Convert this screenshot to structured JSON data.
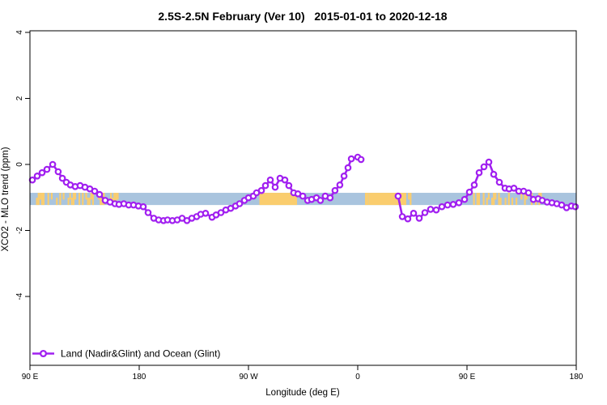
{
  "title": "2.5S-2.5N February (Ver 10)   2015-01-01 to 2020-12-18",
  "legend": {
    "label": "Land (Nadir&Glint) and Ocean (Glint)"
  },
  "axes": {
    "x": {
      "label": "Longitude (deg E)",
      "domain": [
        90,
        540
      ],
      "ticks": [
        {
          "value": 90,
          "label": "90 E"
        },
        {
          "value": 180,
          "label": "180"
        },
        {
          "value": 270,
          "label": "90 W"
        },
        {
          "value": 360,
          "label": "0"
        },
        {
          "value": 450,
          "label": "90 E"
        },
        {
          "value": 540,
          "label": "180"
        }
      ]
    },
    "y": {
      "label": "XCO2 - MLO trend (ppm)",
      "ticks": [
        {
          "value": 4,
          "label": "4"
        },
        {
          "value": 2,
          "label": "2"
        },
        {
          "value": 0,
          "label": "0"
        },
        {
          "value": -2,
          "label": "-2"
        },
        {
          "value": -4,
          "label": "-4"
        }
      ]
    }
  },
  "colors": {
    "series": "#A120F0",
    "ocean_band": "#A9C4DE",
    "land_band": "#FACD6E",
    "axis": "#000000"
  },
  "chart_data": {
    "type": "line",
    "title": "2.5S-2.5N February (Ver 10)   2015-01-01 to 2020-12-18",
    "xlabel": "Longitude (deg E)",
    "ylabel": "XCO2 - MLO trend (ppm)",
    "x_domain": [
      90,
      540
    ],
    "y_tick_range": [
      -4,
      4
    ],
    "y_plot_range": [
      -6.1,
      4.05
    ],
    "grid": false,
    "legend_position": "bottom-left",
    "marker": "open-circle",
    "series": [
      {
        "name": "Land (Nadir&Glint) and Ocean (Glint)",
        "color": "#A120F0",
        "segments": [
          [
            [
              92,
              -0.47
            ],
            [
              96,
              -0.35
            ],
            [
              100,
              -0.25
            ],
            [
              104,
              -0.15
            ],
            [
              108.7,
              0.0
            ],
            [
              113.3,
              -0.22
            ],
            [
              116.7,
              -0.42
            ],
            [
              120,
              -0.54
            ],
            [
              123.3,
              -0.62
            ],
            [
              127.3,
              -0.67
            ],
            [
              131.3,
              -0.64
            ],
            [
              135.3,
              -0.69
            ],
            [
              139.3,
              -0.74
            ],
            [
              143.3,
              -0.81
            ],
            [
              147.3,
              -0.91
            ],
            [
              152,
              -1.09
            ],
            [
              156,
              -1.14
            ],
            [
              160,
              -1.19
            ],
            [
              163.3,
              -1.21
            ],
            [
              167.3,
              -1.19
            ],
            [
              171.3,
              -1.23
            ],
            [
              175.3,
              -1.23
            ],
            [
              179.3,
              -1.26
            ],
            [
              183.3,
              -1.28
            ],
            [
              187.3,
              -1.46
            ],
            [
              192,
              -1.63
            ],
            [
              196,
              -1.68
            ],
            [
              200,
              -1.7
            ],
            [
              203.3,
              -1.68
            ],
            [
              207.3,
              -1.7
            ],
            [
              211.3,
              -1.68
            ],
            [
              215.3,
              -1.63
            ],
            [
              219.3,
              -1.7
            ],
            [
              223.3,
              -1.63
            ],
            [
              227.3,
              -1.58
            ],
            [
              230.7,
              -1.51
            ],
            [
              234.7,
              -1.48
            ],
            [
              240,
              -1.6
            ],
            [
              243.3,
              -1.53
            ],
            [
              247.3,
              -1.46
            ],
            [
              251.3,
              -1.38
            ],
            [
              255.3,
              -1.33
            ],
            [
              259.3,
              -1.26
            ],
            [
              262.7,
              -1.19
            ],
            [
              266.7,
              -1.09
            ],
            [
              270,
              -1.01
            ],
            [
              274,
              -0.96
            ],
            [
              276.7,
              -0.86
            ],
            [
              280.7,
              -0.79
            ],
            [
              284,
              -0.64
            ],
            [
              288,
              -0.47
            ],
            [
              292,
              -0.69
            ],
            [
              296,
              -0.42
            ],
            [
              300,
              -0.47
            ],
            [
              303.3,
              -0.64
            ],
            [
              307.3,
              -0.86
            ],
            [
              310.7,
              -0.89
            ],
            [
              314.7,
              -0.96
            ],
            [
              318.7,
              -1.09
            ],
            [
              322,
              -1.06
            ],
            [
              326,
              -1.01
            ],
            [
              329.3,
              -1.09
            ],
            [
              333.3,
              -0.96
            ],
            [
              337.3,
              -1.01
            ],
            [
              341.3,
              -0.79
            ],
            [
              345.3,
              -0.62
            ],
            [
              348.7,
              -0.35
            ],
            [
              352,
              -0.1
            ],
            [
              354.7,
              0.17
            ],
            [
              360,
              0.22
            ],
            [
              362.7,
              0.15
            ]
          ],
          [
            [
              393.3,
              -0.96
            ],
            [
              396.7,
              -1.58
            ],
            [
              401.3,
              -1.65
            ],
            [
              406,
              -1.48
            ],
            [
              410.7,
              -1.63
            ],
            [
              415.3,
              -1.46
            ],
            [
              420,
              -1.36
            ],
            [
              424.7,
              -1.38
            ],
            [
              429.3,
              -1.28
            ],
            [
              434,
              -1.23
            ],
            [
              438.7,
              -1.21
            ],
            [
              443.3,
              -1.16
            ],
            [
              448,
              -1.06
            ],
            [
              452,
              -0.84
            ],
            [
              456,
              -0.62
            ],
            [
              460,
              -0.25
            ],
            [
              464,
              -0.07
            ],
            [
              468,
              0.07
            ],
            [
              472,
              -0.3
            ],
            [
              476.7,
              -0.54
            ],
            [
              481.3,
              -0.72
            ],
            [
              484.7,
              -0.74
            ],
            [
              488.7,
              -0.72
            ],
            [
              492.7,
              -0.81
            ],
            [
              496.7,
              -0.81
            ],
            [
              500.7,
              -0.86
            ],
            [
              504.7,
              -1.06
            ],
            [
              508.7,
              -1.04
            ],
            [
              512,
              -1.09
            ],
            [
              516,
              -1.14
            ],
            [
              520,
              -1.16
            ],
            [
              524,
              -1.19
            ],
            [
              528,
              -1.23
            ],
            [
              532,
              -1.31
            ],
            [
              536,
              -1.26
            ],
            [
              539.3,
              -1.28
            ]
          ]
        ]
      }
    ],
    "land_ocean_band": {
      "value_range": [
        -0.86,
        -1.23
      ],
      "ocean_color": "#A9C4DE",
      "land_color": "#FACD6E",
      "land_patches": [
        {
          "from": 95,
          "to": 101,
          "style": "speckled"
        },
        {
          "from": 103,
          "to": 118,
          "style": "speckled"
        },
        {
          "from": 121,
          "to": 127,
          "style": "speckled"
        },
        {
          "from": 130,
          "to": 144,
          "style": "speckled"
        },
        {
          "from": 146,
          "to": 152,
          "style": "speckled"
        },
        {
          "from": 156,
          "to": 162,
          "style": "speckled"
        },
        {
          "from": 279,
          "to": 310,
          "style": "solid"
        },
        {
          "from": 366,
          "to": 370,
          "style": "speckled"
        },
        {
          "from": 369,
          "to": 400,
          "style": "solid"
        },
        {
          "from": 400,
          "to": 404,
          "style": "speckled"
        },
        {
          "from": 455,
          "to": 461,
          "style": "speckled"
        },
        {
          "from": 463,
          "to": 478,
          "style": "speckled"
        },
        {
          "from": 481,
          "to": 487,
          "style": "speckled"
        },
        {
          "from": 490,
          "to": 504,
          "style": "speckled"
        },
        {
          "from": 506,
          "to": 511,
          "style": "speckled"
        }
      ]
    }
  }
}
